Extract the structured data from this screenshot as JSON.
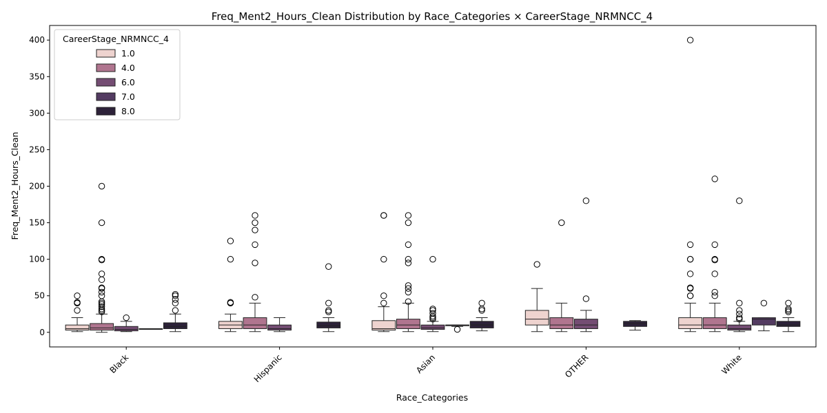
{
  "chart_data": {
    "type": "box",
    "title": "Freq_Ment2_Hours_Clean Distribution by Race_Categories × CareerStage_NRMNCC_4",
    "xlabel": "Race_Categories",
    "ylabel": "Freq_Ment2_Hours_Clean",
    "categories": [
      "Black",
      "Hispanic",
      "Asian",
      "OTHER",
      "White"
    ],
    "ylim": [
      -20,
      420
    ],
    "yticks": [
      0,
      50,
      100,
      150,
      200,
      250,
      300,
      350,
      400
    ],
    "legend": {
      "title": "CareerStage_NRMNCC_4",
      "position": "top-left"
    },
    "series": [
      {
        "name": "1.0",
        "color": "#eed3cf",
        "boxes": [
          {
            "category": "Black",
            "whislo": 1,
            "q1": 3,
            "med": 5,
            "q3": 10,
            "whishi": 20,
            "fliers": [
              30,
              40,
              40,
              41,
              50
            ]
          },
          {
            "category": "Hispanic",
            "whislo": 1,
            "q1": 5,
            "med": 10,
            "q3": 15,
            "whishi": 25,
            "fliers": [
              40,
              40,
              41,
              100,
              125
            ]
          },
          {
            "category": "Asian",
            "whislo": 1,
            "q1": 3,
            "med": 5,
            "q3": 16,
            "whishi": 35,
            "fliers": [
              40,
              50,
              100,
              160,
              160
            ]
          },
          {
            "category": "OTHER",
            "whislo": 1,
            "q1": 10,
            "med": 18,
            "q3": 30,
            "whishi": 60,
            "fliers": [
              93
            ]
          },
          {
            "category": "White",
            "whislo": 1,
            "q1": 5,
            "med": 10,
            "q3": 20,
            "whishi": 40,
            "fliers": [
              50,
              50,
              60,
              61,
              80,
              100,
              100,
              120,
              400
            ]
          }
        ]
      },
      {
        "name": "4.0",
        "color": "#b0758f",
        "boxes": [
          {
            "category": "Black",
            "whislo": 0,
            "q1": 3,
            "med": 6,
            "q3": 12,
            "whishi": 25,
            "fliers": [
              28,
              30,
              32,
              35,
              38,
              40,
              42,
              50,
              55,
              60,
              61,
              72,
              80,
              99,
              100,
              150,
              200
            ]
          },
          {
            "category": "Hispanic",
            "whislo": 1,
            "q1": 5,
            "med": 10,
            "q3": 20,
            "whishi": 40,
            "fliers": [
              48,
              95,
              120,
              140,
              150,
              160
            ]
          },
          {
            "category": "Asian",
            "whislo": 1,
            "q1": 5,
            "med": 10,
            "q3": 18,
            "whishi": 40,
            "fliers": [
              42,
              55,
              60,
              64,
              95,
              100,
              120,
              150,
              160
            ]
          },
          {
            "category": "OTHER",
            "whislo": 1,
            "q1": 5,
            "med": 10,
            "q3": 20,
            "whishi": 40,
            "fliers": [
              150
            ]
          },
          {
            "category": "White",
            "whislo": 1,
            "q1": 5,
            "med": 10,
            "q3": 20,
            "whishi": 40,
            "fliers": [
              50,
              55,
              80,
              99,
              100,
              120,
              210
            ]
          }
        ]
      },
      {
        "name": "6.0",
        "color": "#744d73",
        "boxes": [
          {
            "category": "Black",
            "whislo": 1,
            "q1": 2,
            "med": 4,
            "q3": 8,
            "whishi": 15,
            "fliers": [
              20
            ]
          },
          {
            "category": "Hispanic",
            "whislo": 1,
            "q1": 3,
            "med": 5,
            "q3": 10,
            "whishi": 20,
            "fliers": []
          },
          {
            "category": "Asian",
            "whislo": 1,
            "q1": 4,
            "med": 6,
            "q3": 10,
            "whishi": 15,
            "fliers": [
              18,
              20,
              22,
              26,
              30,
              32,
              100
            ]
          },
          {
            "category": "OTHER",
            "whislo": 1,
            "q1": 5,
            "med": 10,
            "q3": 18,
            "whishi": 30,
            "fliers": [
              46,
              180
            ]
          },
          {
            "category": "White",
            "whislo": 1,
            "q1": 3,
            "med": 5,
            "q3": 10,
            "whishi": 15,
            "fliers": [
              18,
              20,
              25,
              30,
              40,
              180
            ]
          }
        ]
      },
      {
        "name": "7.0",
        "color": "#533b61",
        "boxes": [
          {
            "category": "Black",
            "whislo": 4,
            "q1": 4,
            "med": 5,
            "q3": 5,
            "whishi": 5,
            "fliers": []
          },
          {
            "category": "Asian",
            "whislo": 8,
            "q1": 9,
            "med": 10,
            "q3": 10,
            "whishi": 10,
            "fliers": [
              4
            ]
          },
          {
            "category": "White",
            "whislo": 2,
            "q1": 10,
            "med": 18,
            "q3": 20,
            "whishi": 20,
            "fliers": [
              40
            ]
          }
        ]
      },
      {
        "name": "8.0",
        "color": "#2d2239",
        "boxes": [
          {
            "category": "Black",
            "whislo": 1,
            "q1": 5,
            "med": 8,
            "q3": 13,
            "whishi": 25,
            "fliers": [
              30,
              40,
              45,
              50,
              52
            ]
          },
          {
            "category": "Hispanic",
            "whislo": 1,
            "q1": 6,
            "med": 9,
            "q3": 14,
            "whishi": 20,
            "fliers": [
              28,
              30,
              40,
              90
            ]
          },
          {
            "category": "Asian",
            "whislo": 2,
            "q1": 6,
            "med": 10,
            "q3": 15,
            "whishi": 20,
            "fliers": [
              30,
              32,
              40
            ]
          },
          {
            "category": "OTHER",
            "whislo": 3,
            "q1": 8,
            "med": 12,
            "q3": 15,
            "whishi": 16,
            "fliers": []
          },
          {
            "category": "White",
            "whislo": 1,
            "q1": 8,
            "med": 10,
            "q3": 15,
            "whishi": 20,
            "fliers": [
              28,
              30,
              32,
              40
            ]
          }
        ]
      }
    ]
  }
}
